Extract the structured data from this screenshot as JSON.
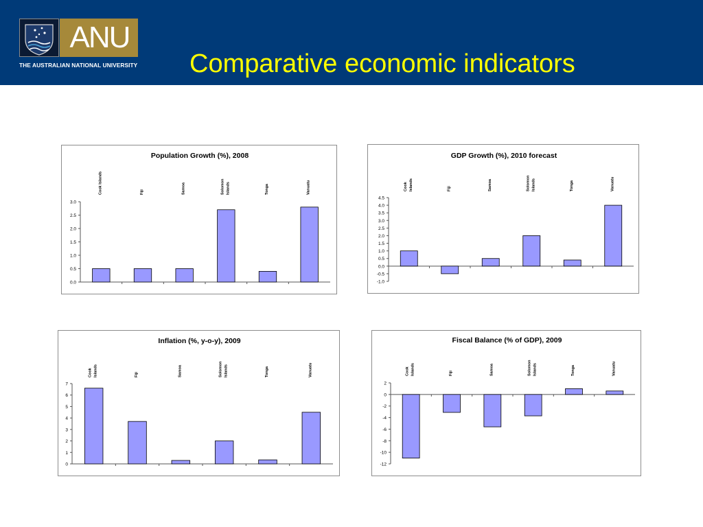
{
  "header": {
    "title": "Comparative economic indicators",
    "logo_text": "ANU",
    "logo_subtitle": "THE AUSTRALIAN NATIONAL UNIVERSITY",
    "background_color": "#003a78",
    "title_color": "#ffff00"
  },
  "bar_color": "#9999ff",
  "chart_data": [
    {
      "type": "bar",
      "title": "Population Growth (%), 2008",
      "categories": [
        [
          "Cook Islands"
        ],
        [
          "Fiji"
        ],
        [
          "Samoa"
        ],
        [
          "Solomon",
          "Islands"
        ],
        [
          "Tonga"
        ],
        [
          "Vanuatu"
        ]
      ],
      "values": [
        0.5,
        0.5,
        0.5,
        2.7,
        0.4,
        2.8
      ],
      "ylim": [
        0,
        3
      ],
      "yticks": [
        "0.0",
        "0.5",
        "1.0",
        "1.5",
        "2.0",
        "2.5",
        "3.0"
      ],
      "xlabel": "",
      "ylabel": "",
      "grid": false,
      "legend": "none"
    },
    {
      "type": "bar",
      "title": "GDP Growth (%), 2010 forecast",
      "categories": [
        [
          "Cook",
          "Islands"
        ],
        [
          "Fiji"
        ],
        [
          "Samoa"
        ],
        [
          "Solomon",
          "Islands"
        ],
        [
          "Tonga"
        ],
        [
          "Vanuatu"
        ]
      ],
      "values": [
        1.0,
        -0.5,
        0.5,
        2.0,
        0.4,
        4.0
      ],
      "ylim": [
        -1,
        4.5
      ],
      "yticks": [
        "-1.0",
        "-0.5",
        "0.0",
        "0.5",
        "1.0",
        "1.5",
        "2.0",
        "2.5",
        "3.0",
        "3.5",
        "4.0",
        "4.5"
      ],
      "xlabel": "",
      "ylabel": "",
      "grid": false,
      "legend": "none"
    },
    {
      "type": "bar",
      "title": "Inflation (%, y-o-y), 2009",
      "categories": [
        [
          "Cook",
          "Islands"
        ],
        [
          "Fiji"
        ],
        [
          "Samoa"
        ],
        [
          "Solomon",
          "Islands"
        ],
        [
          "Tonga"
        ],
        [
          "Vanuatu"
        ]
      ],
      "values": [
        6.6,
        3.7,
        0.3,
        2.0,
        0.35,
        4.5
      ],
      "ylim": [
        0,
        7
      ],
      "yticks": [
        "0",
        "1",
        "2",
        "3",
        "4",
        "5",
        "6",
        "7"
      ],
      "xlabel": "",
      "ylabel": "",
      "grid": false,
      "legend": "none"
    },
    {
      "type": "bar",
      "title": "Fiscal Balance (% of GDP), 2009",
      "categories": [
        [
          "Cook",
          "Islands"
        ],
        [
          "Fiji"
        ],
        [
          "Samoa"
        ],
        [
          "Solomon",
          "Islands"
        ],
        [
          "Tonga"
        ],
        [
          "Vanuatu"
        ]
      ],
      "values": [
        -11,
        -3.1,
        -5.6,
        -3.7,
        1.0,
        0.6
      ],
      "ylim": [
        -12,
        2
      ],
      "yticks": [
        "-12",
        "-10",
        "-8",
        "-6",
        "-4",
        "-2",
        "0",
        "2"
      ],
      "xlabel": "",
      "ylabel": "",
      "grid": false,
      "legend": "none"
    }
  ]
}
